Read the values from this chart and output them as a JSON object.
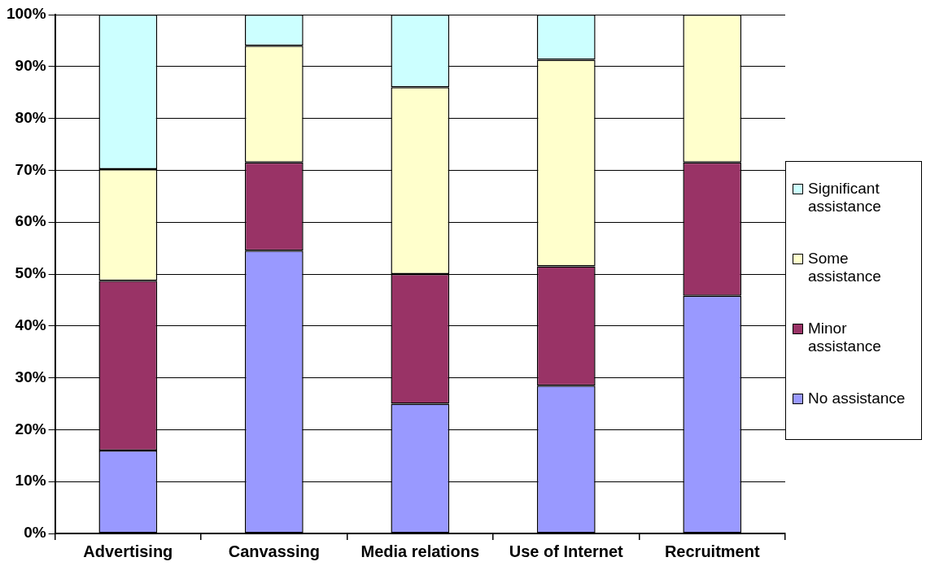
{
  "chart_data": {
    "type": "bar",
    "stacked": true,
    "categories": [
      "Advertising",
      "Canvassing",
      "Media relations",
      "Use of Internet",
      "Recruitment"
    ],
    "series": [
      {
        "name": "No assistance",
        "color": "#9999ff",
        "values": [
          16,
          54.5,
          25,
          28.5,
          45.8
        ]
      },
      {
        "name": "Minor assistance",
        "color": "#993366",
        "values": [
          32.7,
          17,
          25,
          23,
          25.7
        ]
      },
      {
        "name": "Some assistance",
        "color": "#ffffcc",
        "values": [
          21.5,
          22.5,
          36,
          39.8,
          28.5
        ]
      },
      {
        "name": "Significant assistance",
        "color": "#ccffff",
        "values": [
          29.8,
          6,
          14,
          8.7,
          0
        ]
      }
    ],
    "ylim": [
      0,
      100
    ],
    "yticks": [
      {
        "value": 0,
        "label": "0%"
      },
      {
        "value": 10,
        "label": "10%"
      },
      {
        "value": 20,
        "label": "20%"
      },
      {
        "value": 30,
        "label": "30%"
      },
      {
        "value": 40,
        "label": "40%"
      },
      {
        "value": 50,
        "label": "50%"
      },
      {
        "value": 60,
        "label": "60%"
      },
      {
        "value": 70,
        "label": "70%"
      },
      {
        "value": 80,
        "label": "80%"
      },
      {
        "value": 90,
        "label": "90%"
      },
      {
        "value": 100,
        "label": "100%"
      }
    ],
    "grid": "y",
    "legend": "right"
  }
}
